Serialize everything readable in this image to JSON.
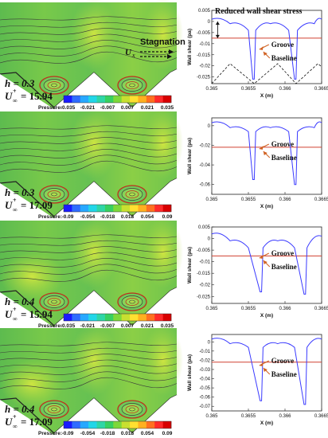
{
  "colorbar_colors": [
    "#1a1aff",
    "#2f6bff",
    "#27a8ff",
    "#22d6e8",
    "#2fd6a6",
    "#38d060",
    "#7ed83a",
    "#c8e030",
    "#ffe030",
    "#ffb020",
    "#ff7020",
    "#ff2a2a",
    "#d80000"
  ],
  "colors": {
    "field_green": "#67c254",
    "field_yellow": "#b8de44",
    "streamline": "#3a3a3a",
    "vortex_red": "#c0301c",
    "wall_shear_line": "#3a3aff",
    "baseline_line": "#d04030",
    "annotation_arrow": "#d06020"
  },
  "panels": [
    {
      "h_text": "h = 0.3",
      "u_lhs": "U",
      "u_sup": "+",
      "u_sub": "∞",
      "u_val": "= 15.94",
      "pressure_label": "Pressure:",
      "colorbar_ticks": [
        "-0.035",
        "-0.021",
        "-0.007",
        "0.007",
        "0.021",
        "0.035"
      ],
      "show_stagnation": true,
      "stagnation_label": "Stagnation",
      "ux_label": "U",
      "ux_sub": "x",
      "plot": {
        "title": "Reduced wall shear stress",
        "ylabel": "Wall shear (pa)",
        "xlabel": "X (m)",
        "yticks": [
          "0.005",
          "0",
          "-0.005",
          "-0.01",
          "-0.015",
          "-0.02",
          "-0.025"
        ],
        "xticks": [
          "0.365",
          "0.3655",
          "0.366",
          "0.3665"
        ],
        "groove_label": "Groove",
        "baseline_label": "Baseline",
        "baseline_y": -0.0075,
        "ymin": -0.028,
        "ymax": 0.005
      }
    },
    {
      "h_text": "h = 0.3",
      "u_lhs": "U",
      "u_sup": "+",
      "u_sub": "∞",
      "u_val": "= 17.09",
      "pressure_label": "Pressure:",
      "colorbar_ticks": [
        "-0.09",
        "-0.054",
        "-0.018",
        "0.018",
        "0.054",
        "0.09"
      ],
      "show_stagnation": false,
      "plot": {
        "title": "",
        "ylabel": "Wall shear (pa)",
        "xlabel": "X (m)",
        "yticks": [
          "0",
          "-0.02",
          "-0.04",
          "-0.06"
        ],
        "xticks": [
          "0.365",
          "0.3655",
          "0.366",
          "0.3665"
        ],
        "groove_label": "Groove",
        "baseline_label": "Baseline",
        "baseline_y": -0.022,
        "ymin": -0.07,
        "ymax": 0.008
      }
    },
    {
      "h_text": "h = 0.4",
      "u_lhs": "U",
      "u_sup": "+",
      "u_sub": "∞",
      "u_val": "= 15.94",
      "pressure_label": "Pressure:",
      "colorbar_ticks": [
        "-0.035",
        "-0.021",
        "-0.007",
        "0.007",
        "0.021",
        "0.035"
      ],
      "show_stagnation": false,
      "plot": {
        "title": "",
        "ylabel": "Wall shear (pa)",
        "xlabel": "X (m)",
        "yticks": [
          "0.005",
          "0",
          "-0.005",
          "-0.01",
          "-0.015",
          "-0.02",
          "-0.025"
        ],
        "xticks": [
          "0.365",
          "0.3655",
          "0.366",
          "0.3665"
        ],
        "groove_label": "Groove",
        "baseline_label": "Baseline",
        "baseline_y": -0.0075,
        "ymin": -0.028,
        "ymax": 0.005
      }
    },
    {
      "h_text": "h = 0.4",
      "u_lhs": "U",
      "u_sup": "+",
      "u_sub": "∞",
      "u_val": "= 17.09",
      "pressure_label": "Pressure:",
      "colorbar_ticks": [
        "-0.09",
        "-0.054",
        "-0.018",
        "0.018",
        "0.054",
        "0.09"
      ],
      "show_stagnation": false,
      "plot": {
        "title": "",
        "ylabel": "Wall shear (pa)",
        "xlabel": "X (m)",
        "yticks": [
          "0",
          "-0.01",
          "-0.02",
          "-0.03",
          "-0.04",
          "-0.05",
          "-0.06",
          "-0.07"
        ],
        "xticks": [
          "0.365",
          "0.3655",
          "0.366",
          "0.3665"
        ],
        "groove_label": "Groove",
        "baseline_label": "Baseline",
        "baseline_y": -0.022,
        "ymin": -0.075,
        "ymax": 0.008
      }
    }
  ],
  "chart_data": [
    {
      "type": "line",
      "title": "Reduced wall shear stress",
      "xlabel": "X (m)",
      "ylabel": "Wall shear (pa)",
      "xlim": [
        0.365,
        0.3665
      ],
      "ylim": [
        -0.028,
        0.005
      ],
      "series": [
        {
          "name": "Groove",
          "x": [
            0.365,
            0.36525,
            0.3655,
            0.36556,
            0.36558,
            0.3656,
            0.3658,
            0.36605,
            0.36613,
            0.36615,
            0.36617,
            0.3664,
            0.3665
          ],
          "values": [
            0.001,
            -0.001,
            -0.004,
            -0.026,
            -0.026,
            -0.004,
            -0.001,
            -0.004,
            -0.026,
            -0.026,
            -0.004,
            -0.001,
            0.001
          ]
        },
        {
          "name": "Baseline",
          "x": [
            0.365,
            0.3665
          ],
          "values": [
            -0.0075,
            -0.0075
          ]
        }
      ]
    },
    {
      "type": "line",
      "title": "",
      "xlabel": "X (m)",
      "ylabel": "Wall shear (pa)",
      "xlim": [
        0.365,
        0.3665
      ],
      "ylim": [
        -0.07,
        0.008
      ],
      "series": [
        {
          "name": "Groove",
          "x": [
            0.365,
            0.36525,
            0.3655,
            0.36556,
            0.36558,
            0.3656,
            0.3658,
            0.36605,
            0.36613,
            0.36615,
            0.36617,
            0.3664,
            0.3665
          ],
          "values": [
            0.003,
            -0.002,
            -0.006,
            -0.055,
            -0.055,
            -0.006,
            -0.002,
            -0.006,
            -0.06,
            -0.06,
            -0.006,
            -0.002,
            0.003
          ]
        },
        {
          "name": "Baseline",
          "x": [
            0.365,
            0.3665
          ],
          "values": [
            -0.022,
            -0.022
          ]
        }
      ]
    },
    {
      "type": "line",
      "title": "",
      "xlabel": "X (m)",
      "ylabel": "Wall shear (pa)",
      "xlim": [
        0.365,
        0.3665
      ],
      "ylim": [
        -0.028,
        0.005
      ],
      "series": [
        {
          "name": "Groove",
          "x": [
            0.365,
            0.36525,
            0.3655,
            0.36566,
            0.36568,
            0.3657,
            0.3659,
            0.36613,
            0.36626,
            0.36628,
            0.3663,
            0.3665
          ],
          "values": [
            0.002,
            -0.001,
            -0.004,
            -0.023,
            -0.023,
            -0.004,
            -0.001,
            -0.004,
            -0.024,
            -0.024,
            -0.004,
            0.001
          ]
        },
        {
          "name": "Baseline",
          "x": [
            0.365,
            0.3665
          ],
          "values": [
            -0.0075,
            -0.0075
          ]
        }
      ]
    },
    {
      "type": "line",
      "title": "",
      "xlabel": "X (m)",
      "ylabel": "Wall shear (pa)",
      "xlim": [
        0.365,
        0.3665
      ],
      "ylim": [
        -0.075,
        0.008
      ],
      "series": [
        {
          "name": "Groove",
          "x": [
            0.365,
            0.36525,
            0.3655,
            0.36566,
            0.36568,
            0.3657,
            0.3659,
            0.36613,
            0.36626,
            0.36628,
            0.3663,
            0.3665
          ],
          "values": [
            0.003,
            -0.002,
            -0.006,
            -0.064,
            -0.064,
            -0.006,
            -0.002,
            -0.006,
            -0.068,
            -0.068,
            -0.006,
            0.003
          ]
        },
        {
          "name": "Baseline",
          "x": [
            0.365,
            0.3665
          ],
          "values": [
            -0.022,
            -0.022
          ]
        }
      ]
    }
  ]
}
